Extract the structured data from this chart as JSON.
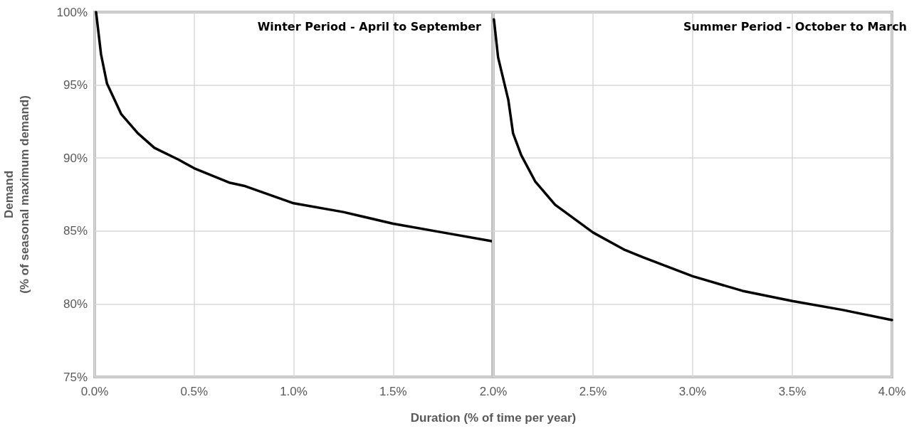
{
  "chart_data": [
    {
      "type": "line",
      "title": "Winter Period - April to September",
      "xlabel": "Duration (% of time per year)",
      "ylabel": "Demand\n(% of seasonal maximum demand)",
      "x": [
        0.007,
        0.032,
        0.062,
        0.134,
        0.217,
        0.3,
        0.42,
        0.5,
        0.68,
        0.75,
        1.0,
        1.25,
        1.5,
        1.75,
        2.0
      ],
      "series": [
        {
          "color": "#000000",
          "values": [
            100,
            97.1,
            95.1,
            93.0,
            91.7,
            90.7,
            89.9,
            89.3,
            88.3,
            88.1,
            86.9,
            86.3,
            85.5,
            84.9,
            84.3
          ]
        }
      ],
      "xlim": [
        0,
        2
      ],
      "xticks": [
        {
          "value": 0,
          "label": "0.0%"
        },
        {
          "value": 0.5,
          "label": "0.5%"
        },
        {
          "value": 1,
          "label": "1.0%"
        },
        {
          "value": 1.5,
          "label": "1.5%"
        }
      ],
      "ylim": [
        75,
        100
      ],
      "yticks": [
        {
          "value": 75,
          "label": "75%"
        },
        {
          "value": 80,
          "label": "80%"
        },
        {
          "value": 85,
          "label": "85%"
        },
        {
          "value": 90,
          "label": "90%"
        },
        {
          "value": 95,
          "label": "95%"
        },
        {
          "value": 100,
          "label": "100%"
        }
      ],
      "grid": true,
      "marker": "none",
      "line_style": "solid"
    },
    {
      "type": "line",
      "title": "Summer Period - October to March",
      "x": [
        2.003,
        2.024,
        2.075,
        2.099,
        2.14,
        2.21,
        2.31,
        2.41,
        2.5,
        2.66,
        2.75,
        3.0,
        3.25,
        3.5,
        3.75,
        4.0
      ],
      "series": [
        {
          "color": "#000000",
          "values": [
            99.5,
            96.9,
            94.0,
            91.7,
            90.2,
            88.4,
            86.8,
            85.8,
            84.9,
            83.7,
            83.2,
            81.9,
            80.9,
            80.2,
            79.6,
            78.9
          ]
        }
      ],
      "xlim": [
        2,
        4
      ],
      "xticks": [
        {
          "value": 2,
          "label": "2.0%"
        },
        {
          "value": 2.5,
          "label": "2.5%"
        },
        {
          "value": 3,
          "label": "3.0%"
        },
        {
          "value": 3.5,
          "label": "3.5%"
        },
        {
          "value": 4,
          "label": "4.0%"
        }
      ],
      "ylim": [
        75,
        100
      ],
      "yticks": [
        {
          "value": 75,
          "label": null
        },
        {
          "value": 80,
          "label": null
        },
        {
          "value": 85,
          "label": null
        },
        {
          "value": 90,
          "label": null
        },
        {
          "value": 95,
          "label": null
        },
        {
          "value": 100,
          "label": null
        }
      ],
      "grid": true,
      "marker": "none",
      "line_style": "solid",
      "tick_labels": "x"
    }
  ]
}
